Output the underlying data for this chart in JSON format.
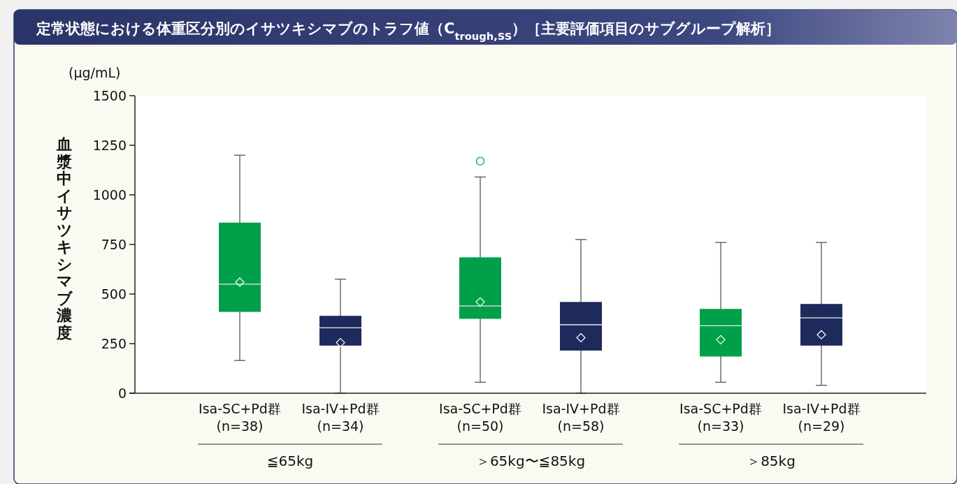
{
  "chart_data": {
    "type": "box",
    "title": "定常状態における体重区分別のイサツキシマブのトラフ値（C$_{trough,SS}$）［主要評価項目のサブグループ解析］",
    "ylabel": "血漿中イサツキシマブ濃度",
    "annotations": [
      "(μg/mL)",
      "≦65kg",
      "＞65kg〜≦85kg",
      "＞85kg"
    ],
    "categories": [
      "Isa-SC+Pd群 (n=38)",
      "Isa-IV+Pd群 (n=34)",
      "Isa-SC+Pd群 (n=50)",
      "Isa-IV+Pd群 (n=58)",
      "Isa-SC+Pd群 (n=33)",
      "Isa-IV+Pd群 (n=29)"
    ],
    "colors": [
      "#00a04a",
      "#1e2a5c",
      "#00a04a",
      "#1e2a5c",
      "#00a04a",
      "#1e2a5c"
    ],
    "boxes": [
      {
        "low": 165,
        "q1": 410,
        "median": 550,
        "q3": 860,
        "high": 1200,
        "mean": 560
      },
      {
        "low": 0,
        "q1": 240,
        "median": 330,
        "q3": 390,
        "high": 575,
        "mean": 255
      },
      {
        "low": 55,
        "q1": 375,
        "median": 440,
        "q3": 685,
        "high": 1090,
        "mean": 460,
        "outliers": [
          1170
        ]
      },
      {
        "low": 0,
        "q1": 215,
        "median": 345,
        "q3": 460,
        "high": 775,
        "mean": 280
      },
      {
        "low": 55,
        "q1": 185,
        "median": 340,
        "q3": 425,
        "high": 760,
        "mean": 270
      },
      {
        "low": 40,
        "q1": 240,
        "median": 380,
        "q3": 450,
        "high": 760,
        "mean": 295
      }
    ],
    "ylim": [
      0,
      1500
    ],
    "yticks": [
      0,
      250,
      500,
      750,
      1000,
      1250,
      1500
    ],
    "marker": "diamond",
    "grid": false
  }
}
